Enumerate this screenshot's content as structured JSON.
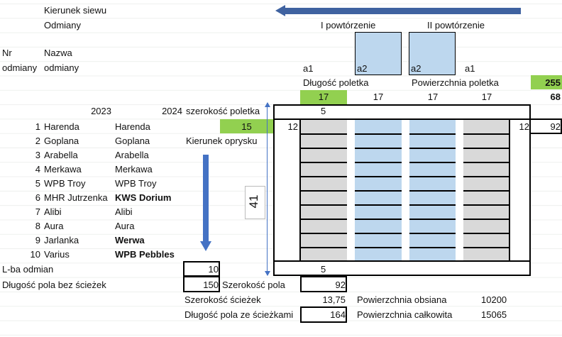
{
  "headers": {
    "sowing_direction": "Kierunek siewu",
    "varieties": "Odmiany",
    "nr_line1": "Nr",
    "nr_line2": "odmiany",
    "name_line1": "Nazwa",
    "name_line2": "odmiany",
    "rep1": "I powtórzenie",
    "rep2": "II powtórzenie",
    "year1": "2023",
    "year2": "2024",
    "plot_width_label": "szerokość poletka",
    "spray_direction": "Kierunek oprysku"
  },
  "plot_labels": {
    "a1_left": "a1",
    "a2_left": "a2",
    "a2_right": "a2",
    "a1_right": "a1"
  },
  "plot_length_label": "Długość poletka",
  "plot_area_label": "Powierzchnia poletka",
  "plot_area": "255",
  "plot_lengths": [
    "17",
    "17",
    "17",
    "17"
  ],
  "plot_lengths_total": "68",
  "plot_width": "15",
  "top_path": "5",
  "bottom_path": "5",
  "side_left": "12",
  "side_right": "12",
  "field_width_right": "92",
  "vertical_dimension": "41",
  "varieties": [
    {
      "nr": "1",
      "y2023": "Harenda",
      "y2024": "Harenda",
      "bold": false
    },
    {
      "nr": "2",
      "y2023": "Goplana",
      "y2024": "Goplana",
      "bold": false
    },
    {
      "nr": "3",
      "y2023": "Arabella",
      "y2024": "Arabella",
      "bold": false
    },
    {
      "nr": "4",
      "y2023": "Merkawa",
      "y2024": "Merkawa",
      "bold": false
    },
    {
      "nr": "5",
      "y2023": "WPB Troy",
      "y2024": "WPB Troy",
      "bold": false
    },
    {
      "nr": "6",
      "y2023": "MHR Jutrzenka",
      "y2024": "KWS Dorium",
      "bold": true
    },
    {
      "nr": "7",
      "y2023": "Alibi",
      "y2024": "Alibi",
      "bold": false
    },
    {
      "nr": "8",
      "y2023": "Aura",
      "y2024": "Aura",
      "bold": false
    },
    {
      "nr": "9",
      "y2023": "Jarlanka",
      "y2024": "Werwa",
      "bold": true
    },
    {
      "nr": "10",
      "y2023": "Varius",
      "y2024": "WPB Pebbles",
      "bold": true
    }
  ],
  "summary": {
    "variety_count_label": "L-ba odmian",
    "variety_count": "10",
    "length_no_paths_label": "Długość pola bez ścieżek",
    "length_no_paths": "150",
    "field_width_label": "Szerokość pola",
    "field_width": "92",
    "paths_width_label": "Szerokość ścieżek",
    "paths_width": "13,75",
    "sown_area_label": "Powierzchnia obsiana",
    "sown_area": "10200",
    "length_with_paths_label": "Długość pola ze ścieżkami",
    "length_with_paths": "164",
    "total_area_label": "Powierzchnia całkowita",
    "total_area": "15065"
  },
  "colors": {
    "green": "#92d050",
    "blue_plot": "#bdd7ee",
    "grey_plot": "#d9d9d9",
    "arrow": "#4472c4"
  }
}
